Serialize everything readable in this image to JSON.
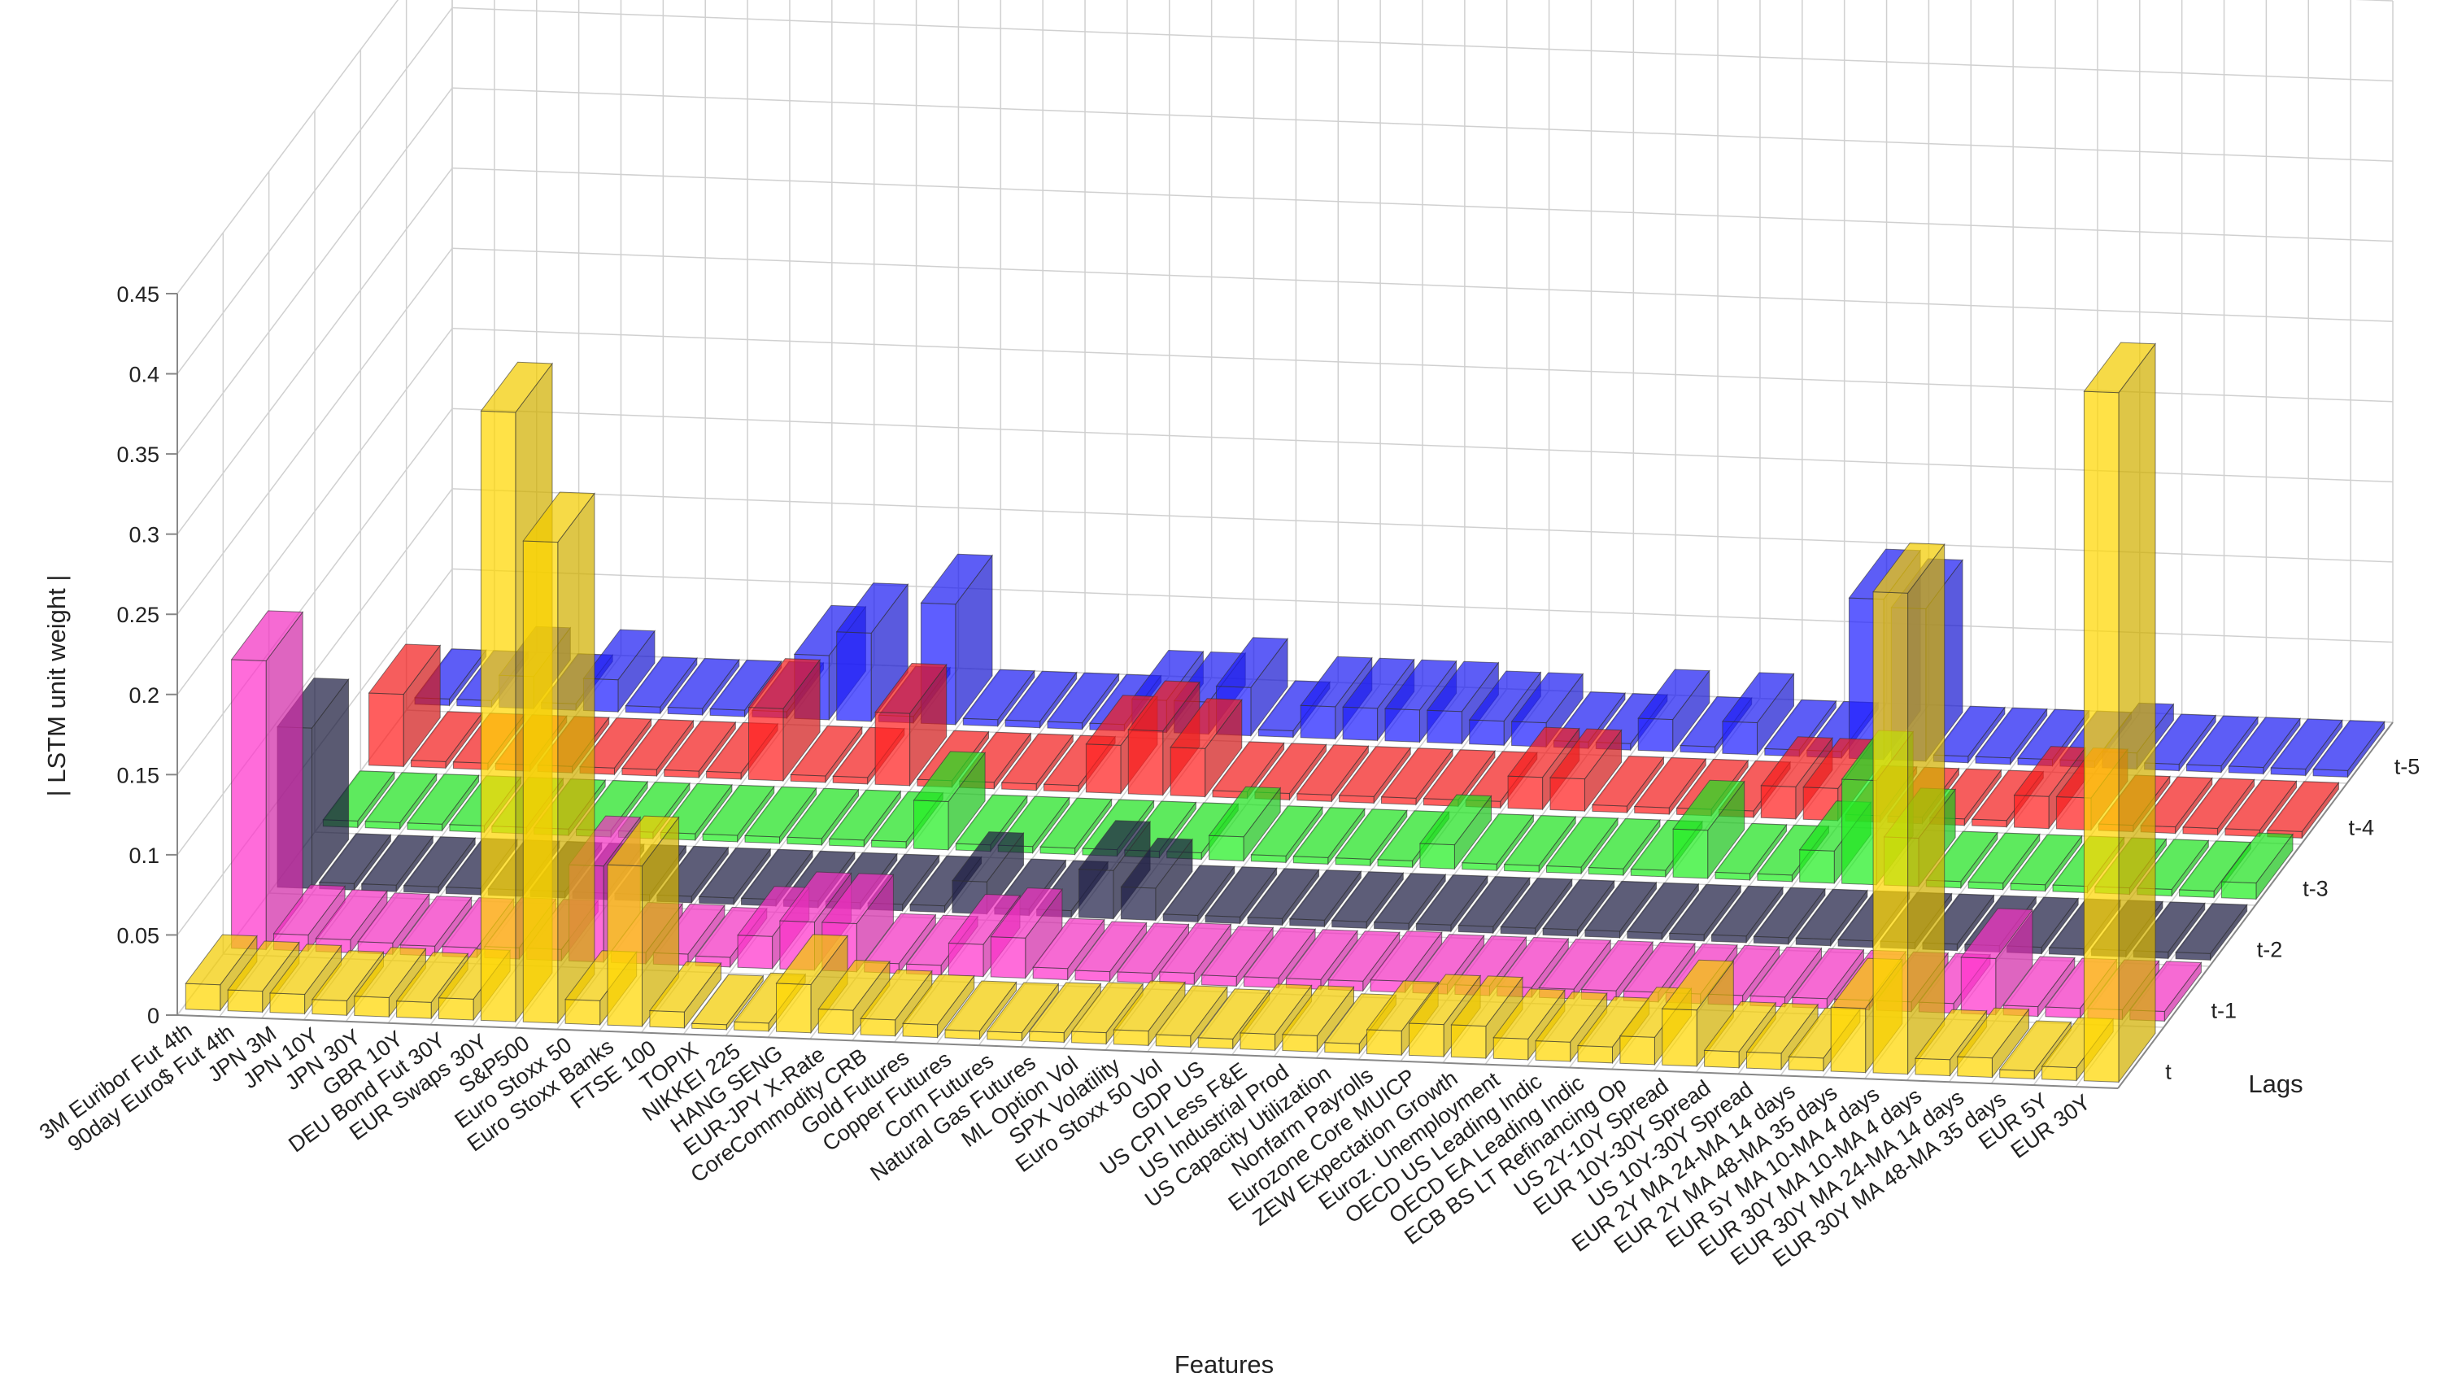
{
  "chart_data": {
    "type": "bar3d",
    "title": "",
    "xlabel": "Features",
    "ylabel": "Lags",
    "zlabel": "| LSTM unit weight |",
    "zlim": [
      0,
      0.45
    ],
    "zticks": [
      "0",
      "0.05",
      "0.1",
      "0.15",
      "0.2",
      "0.25",
      "0.3",
      "0.35",
      "0.4",
      "0.45"
    ],
    "grid": true,
    "features": [
      "3M Euribor Fut 4th",
      "90day Euro$ Fut 4th",
      "JPN 3M",
      "JPN 10Y",
      "JPN 30Y",
      "GBR 10Y",
      "DEU Bond Fut 30Y",
      "EUR Swaps 30Y",
      "S&P500",
      "Euro Stoxx 50",
      "Euro Stoxx Banks",
      "FTSE 100",
      "TOPIX",
      "NIKKEI 225",
      "HANG SENG",
      "EUR-JPY X-Rate",
      "CoreCommodity CRB",
      "Gold Futures",
      "Copper Futures",
      "Corn Futures",
      "Natural Gas Futures",
      "ML Option Vol",
      "SPX Volatility",
      "Euro Stoxx 50 Vol",
      "GDP US",
      "US CPI Less F&E",
      "US Industrial Prod",
      "US Capacity Utilization",
      "Nonfarm Payrolls",
      "Eurozone Core MUICP",
      "ZEW Expectation Growth",
      "Euroz. Unemployment",
      "OECD US Leading Indic",
      "OECD EA Leading Indic",
      "ECB BS LT Refinancing Op",
      "US 2Y-10Y Spread",
      "EUR 10Y-30Y Spread",
      "US 10Y-30Y Spread",
      "EUR 2Y MA 24-MA 14 days",
      "EUR 2Y MA 48-MA 35 days",
      "EUR 5Y MA 10-MA 4 days",
      "EUR 30Y MA 10-MA 4 days",
      "EUR 30Y MA 24-MA 14 days",
      "EUR 30Y MA 48-MA 35 days",
      "EUR 5Y",
      "EUR 30Y"
    ],
    "series": [
      {
        "name": "t",
        "color": "#FFD700",
        "values": [
          0.016,
          0.013,
          0.012,
          0.009,
          0.012,
          0.01,
          0.013,
          0.38,
          0.3,
          0.015,
          0.1,
          0.01,
          0.003,
          0.005,
          0.03,
          0.015,
          0.01,
          0.008,
          0.005,
          0.005,
          0.006,
          0.007,
          0.009,
          0.007,
          0.006,
          0.01,
          0.01,
          0.006,
          0.015,
          0.02,
          0.02,
          0.013,
          0.012,
          0.01,
          0.017,
          0.035,
          0.01,
          0.01,
          0.008,
          0.04,
          0.3,
          0.01,
          0.012,
          0.005,
          0.008,
          0.43
        ]
      },
      {
        "name": "t-1",
        "color": "#FF33CC",
        "values": [
          0.18,
          0.01,
          0.008,
          0.007,
          0.006,
          0.006,
          0.007,
          0.007,
          0.06,
          0.007,
          0.007,
          0.006,
          0.02,
          0.03,
          0.03,
          0.006,
          0.006,
          0.02,
          0.025,
          0.007,
          0.006,
          0.006,
          0.007,
          0.006,
          0.006,
          0.006,
          0.006,
          0.007,
          0.006,
          0.006,
          0.006,
          0.006,
          0.006,
          0.006,
          0.006,
          0.006,
          0.006,
          0.006,
          0.006,
          0.006,
          0.006,
          0.035,
          0.006,
          0.006,
          0.006,
          0.006
        ]
      },
      {
        "name": "t-2",
        "color": "#202048",
        "values": [
          0.1,
          0.004,
          0.004,
          0.004,
          0.004,
          0.004,
          0.004,
          0.004,
          0.004,
          0.004,
          0.004,
          0.004,
          0.004,
          0.004,
          0.004,
          0.004,
          0.02,
          0.004,
          0.004,
          0.03,
          0.02,
          0.004,
          0.004,
          0.004,
          0.004,
          0.004,
          0.004,
          0.004,
          0.004,
          0.004,
          0.004,
          0.004,
          0.004,
          0.004,
          0.004,
          0.004,
          0.004,
          0.004,
          0.004,
          0.004,
          0.004,
          0.004,
          0.004,
          0.004,
          0.004,
          0.004
        ]
      },
      {
        "name": "t-3",
        "color": "#22EE22",
        "values": [
          0.004,
          0.004,
          0.004,
          0.004,
          0.004,
          0.004,
          0.004,
          0.004,
          0.004,
          0.004,
          0.004,
          0.004,
          0.004,
          0.004,
          0.03,
          0.004,
          0.004,
          0.004,
          0.004,
          0.004,
          0.004,
          0.015,
          0.004,
          0.004,
          0.004,
          0.004,
          0.015,
          0.004,
          0.004,
          0.004,
          0.004,
          0.004,
          0.03,
          0.004,
          0.004,
          0.02,
          0.065,
          0.03,
          0.004,
          0.004,
          0.004,
          0.004,
          0.004,
          0.004,
          0.004,
          0.01
        ]
      },
      {
        "name": "t-4",
        "color": "#FF2020",
        "values": [
          0.045,
          0.004,
          0.004,
          0.004,
          0.004,
          0.004,
          0.004,
          0.004,
          0.004,
          0.045,
          0.004,
          0.004,
          0.045,
          0.004,
          0.004,
          0.004,
          0.004,
          0.03,
          0.04,
          0.03,
          0.004,
          0.004,
          0.004,
          0.004,
          0.004,
          0.004,
          0.004,
          0.02,
          0.02,
          0.004,
          0.004,
          0.004,
          0.004,
          0.02,
          0.02,
          0.004,
          0.004,
          0.004,
          0.004,
          0.02,
          0.02,
          0.004,
          0.004,
          0.004,
          0.004,
          0.004
        ]
      },
      {
        "name": "t-5",
        "color": "#2020FF",
        "values": [
          0.004,
          0.004,
          0.02,
          0.004,
          0.02,
          0.004,
          0.004,
          0.004,
          0.004,
          0.04,
          0.055,
          0.004,
          0.075,
          0.004,
          0.004,
          0.004,
          0.004,
          0.02,
          0.02,
          0.03,
          0.004,
          0.02,
          0.02,
          0.02,
          0.02,
          0.015,
          0.015,
          0.004,
          0.004,
          0.02,
          0.004,
          0.02,
          0.004,
          0.004,
          0.1,
          0.095,
          0.004,
          0.004,
          0.004,
          0.004,
          0.01,
          0.004,
          0.004,
          0.004,
          0.004,
          0.004
        ]
      }
    ]
  }
}
